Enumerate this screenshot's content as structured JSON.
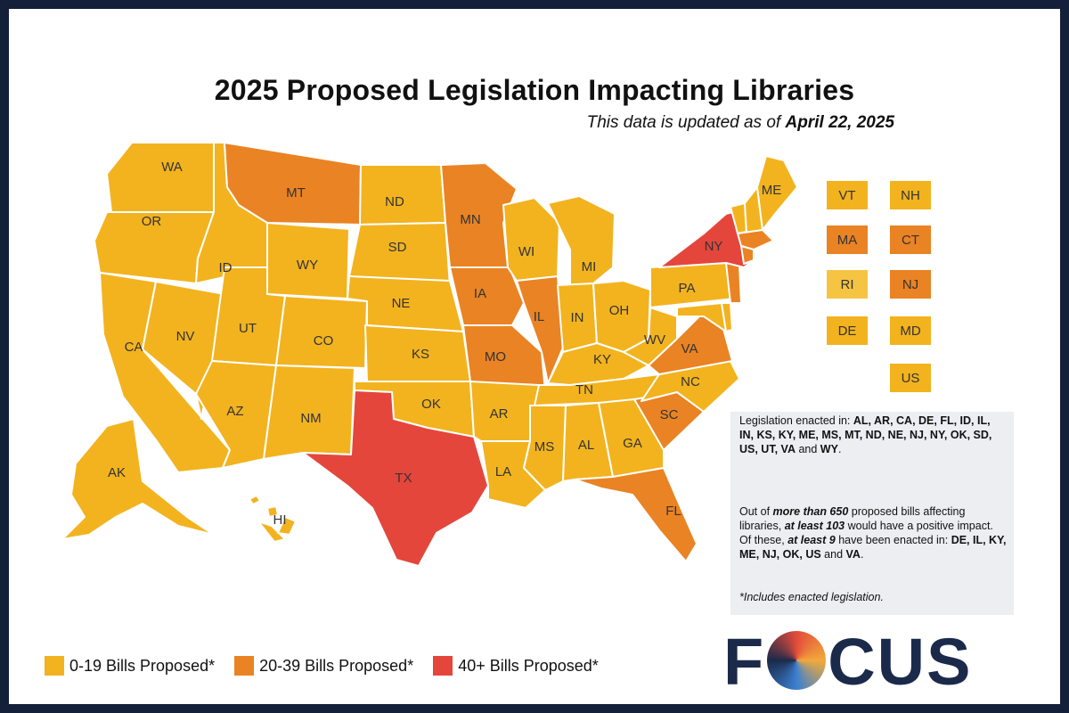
{
  "title": "2025 Proposed Legislation Impacting Libraries",
  "subtitle_prefix": "This data is updated as of ",
  "subtitle_date": "April 22, 2025",
  "colors": {
    "low": "#f2b31f",
    "mid": "#ea8323",
    "high": "#e4463c",
    "ri": "#f5c443",
    "background": "#142039"
  },
  "states": {
    "WA": {
      "label": "WA",
      "level": "low"
    },
    "OR": {
      "label": "OR",
      "level": "low"
    },
    "CA": {
      "label": "CA",
      "level": "low"
    },
    "NV": {
      "label": "NV",
      "level": "low"
    },
    "ID": {
      "label": "ID",
      "level": "low"
    },
    "MT": {
      "label": "MT",
      "level": "mid"
    },
    "WY": {
      "label": "WY",
      "level": "low"
    },
    "UT": {
      "label": "UT",
      "level": "low"
    },
    "AZ": {
      "label": "AZ",
      "level": "low"
    },
    "CO": {
      "label": "CO",
      "level": "low"
    },
    "NM": {
      "label": "NM",
      "level": "low"
    },
    "ND": {
      "label": "ND",
      "level": "low"
    },
    "SD": {
      "label": "SD",
      "level": "low"
    },
    "NE": {
      "label": "NE",
      "level": "low"
    },
    "KS": {
      "label": "KS",
      "level": "low"
    },
    "OK": {
      "label": "OK",
      "level": "low"
    },
    "TX": {
      "label": "TX",
      "level": "high"
    },
    "MN": {
      "label": "MN",
      "level": "mid"
    },
    "IA": {
      "label": "IA",
      "level": "mid"
    },
    "MO": {
      "label": "MO",
      "level": "mid"
    },
    "AR": {
      "label": "AR",
      "level": "low"
    },
    "LA": {
      "label": "LA",
      "level": "low"
    },
    "WI": {
      "label": "WI",
      "level": "low"
    },
    "IL": {
      "label": "IL",
      "level": "mid"
    },
    "MI": {
      "label": "MI",
      "level": "low"
    },
    "IN": {
      "label": "IN",
      "level": "low"
    },
    "OH": {
      "label": "OH",
      "level": "low"
    },
    "KY": {
      "label": "KY",
      "level": "low"
    },
    "TN": {
      "label": "TN",
      "level": "low"
    },
    "MS": {
      "label": "MS",
      "level": "low"
    },
    "AL": {
      "label": "AL",
      "level": "low"
    },
    "GA": {
      "label": "GA",
      "level": "low"
    },
    "FL": {
      "label": "FL",
      "level": "mid"
    },
    "SC": {
      "label": "SC",
      "level": "mid"
    },
    "NC": {
      "label": "NC",
      "level": "low"
    },
    "VA": {
      "label": "VA",
      "level": "mid"
    },
    "WV": {
      "label": "WV",
      "level": "low"
    },
    "PA": {
      "label": "PA",
      "level": "low"
    },
    "NY": {
      "label": "NY",
      "level": "high"
    },
    "ME": {
      "label": "ME",
      "level": "low"
    },
    "AK": {
      "label": "AK",
      "level": "low"
    },
    "HI": {
      "label": "HI",
      "level": "low"
    },
    "NJ_map": {
      "level": "mid"
    },
    "MA_map": {
      "level": "mid"
    },
    "CT_map": {
      "level": "mid"
    },
    "VT_map": {
      "level": "low"
    },
    "NH_map": {
      "level": "low"
    },
    "MD_map": {
      "level": "low"
    },
    "DE_map": {
      "level": "low"
    }
  },
  "small_states": [
    {
      "label": "VT",
      "level": "low"
    },
    {
      "label": "NH",
      "level": "low"
    },
    {
      "label": "MA",
      "level": "mid"
    },
    {
      "label": "CT",
      "level": "mid"
    },
    {
      "label": "RI",
      "level": "ri"
    },
    {
      "label": "NJ",
      "level": "mid"
    },
    {
      "label": "DE",
      "level": "low"
    },
    {
      "label": "MD",
      "level": "low"
    },
    {
      "label": "US",
      "level": "low"
    }
  ],
  "info": {
    "enacted_intro": "Legislation enacted in: ",
    "enacted_list": "AL, AR, CA, DE, FL, ID, IL, IN, KS, KY, ME, MS, MT, ND, NE, NJ, NY, OK, SD, US, UT, VA",
    "enacted_and": " and ",
    "enacted_last": "WY",
    "p2_a": "Out of ",
    "p2_b": "more than 650",
    "p2_c": " proposed bills affecting libraries, ",
    "p2_d": "at least 103",
    "p2_e": " would have a positive impact. Of these, ",
    "p2_f": "at least 9",
    "p2_g": " have been enacted in: ",
    "p2_list": "DE, IL, KY, ME, NJ, OK, US",
    "p2_and": " and ",
    "p2_last": "VA",
    "footnote": "*Includes enacted legislation."
  },
  "legend": [
    {
      "label": "0-19 Bills Proposed*",
      "level": "low"
    },
    {
      "label": "20-39 Bills Proposed*",
      "level": "mid"
    },
    {
      "label": "40+ Bills Proposed*",
      "level": "high"
    }
  ],
  "logo": {
    "left": "F",
    "right": "CUS"
  }
}
